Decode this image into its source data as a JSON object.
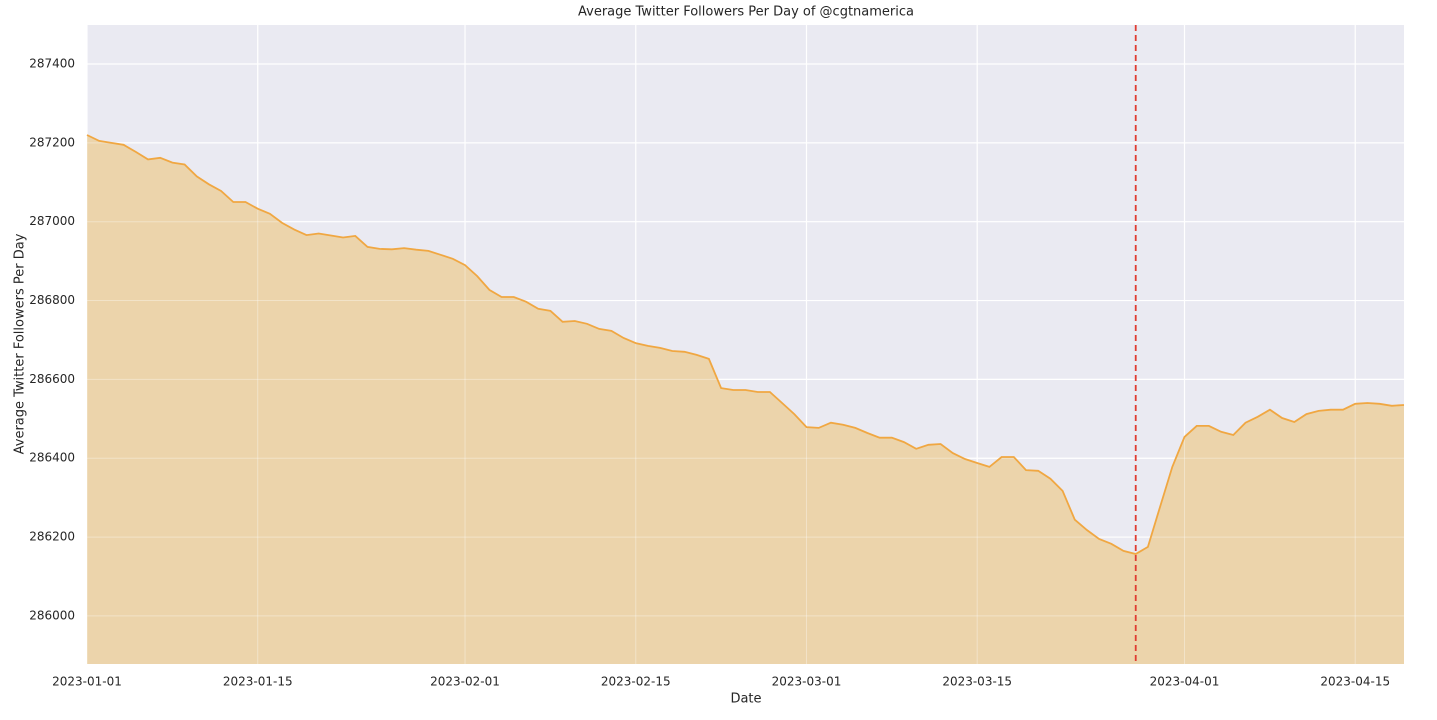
{
  "chart_data": {
    "type": "area",
    "title": "Average Twitter Followers Per Day of @cgtnamerica",
    "x_label": "Date",
    "y_label": "Average Twitter Followers Per Day",
    "x": [
      "2023-01-01",
      "2023-01-02",
      "2023-01-03",
      "2023-01-04",
      "2023-01-05",
      "2023-01-06",
      "2023-01-07",
      "2023-01-08",
      "2023-01-09",
      "2023-01-10",
      "2023-01-11",
      "2023-01-12",
      "2023-01-13",
      "2023-01-14",
      "2023-01-15",
      "2023-01-16",
      "2023-01-17",
      "2023-01-18",
      "2023-01-19",
      "2023-01-20",
      "2023-01-21",
      "2023-01-22",
      "2023-01-23",
      "2023-01-24",
      "2023-01-25",
      "2023-01-26",
      "2023-01-27",
      "2023-01-28",
      "2023-01-29",
      "2023-01-30",
      "2023-01-31",
      "2023-02-01",
      "2023-02-02",
      "2023-02-03",
      "2023-02-04",
      "2023-02-05",
      "2023-02-06",
      "2023-02-07",
      "2023-02-08",
      "2023-02-09",
      "2023-02-10",
      "2023-02-11",
      "2023-02-12",
      "2023-02-13",
      "2023-02-14",
      "2023-02-15",
      "2023-02-16",
      "2023-02-17",
      "2023-02-18",
      "2023-02-19",
      "2023-02-20",
      "2023-02-21",
      "2023-02-22",
      "2023-02-23",
      "2023-02-24",
      "2023-02-25",
      "2023-02-26",
      "2023-02-27",
      "2023-02-28",
      "2023-03-01",
      "2023-03-02",
      "2023-03-03",
      "2023-03-04",
      "2023-03-05",
      "2023-03-06",
      "2023-03-07",
      "2023-03-08",
      "2023-03-09",
      "2023-03-10",
      "2023-03-11",
      "2023-03-12",
      "2023-03-13",
      "2023-03-14",
      "2023-03-15",
      "2023-03-16",
      "2023-03-17",
      "2023-03-18",
      "2023-03-19",
      "2023-03-20",
      "2023-03-21",
      "2023-03-22",
      "2023-03-23",
      "2023-03-24",
      "2023-03-25",
      "2023-03-26",
      "2023-03-27",
      "2023-03-28",
      "2023-03-29",
      "2023-03-30",
      "2023-03-31",
      "2023-04-01",
      "2023-04-02",
      "2023-04-03",
      "2023-04-04",
      "2023-04-05",
      "2023-04-06",
      "2023-04-07",
      "2023-04-08",
      "2023-04-09",
      "2023-04-10",
      "2023-04-11",
      "2023-04-12",
      "2023-04-13",
      "2023-04-14",
      "2023-04-15",
      "2023-04-16",
      "2023-04-17",
      "2023-04-18",
      "2023-04-19"
    ],
    "series": [
      {
        "name": "Average Twitter Followers Per Day",
        "color": "#f0a742",
        "fill": "#ecd4ab",
        "values": [
          287220,
          287205,
          287200,
          287195,
          287177,
          287158,
          287162,
          287150,
          287145,
          287115,
          287095,
          287078,
          287050,
          287050,
          287033,
          287020,
          286997,
          286980,
          286966,
          286970,
          286965,
          286960,
          286964,
          286936,
          286931,
          286930,
          286933,
          286929,
          286926,
          286916,
          286906,
          286890,
          286862,
          286827,
          286809,
          286809,
          286797,
          286779,
          286774,
          286746,
          286748,
          286741,
          286728,
          286723,
          286705,
          286692,
          286685,
          286680,
          286672,
          286670,
          286662,
          286652,
          286578,
          286573,
          286573,
          286568,
          286568,
          286540,
          286512,
          286479,
          286477,
          286490,
          286485,
          286477,
          286464,
          286452,
          286452,
          286441,
          286424,
          286434,
          286436,
          286413,
          286398,
          286388,
          286378,
          286403,
          286403,
          286370,
          286368,
          286348,
          286317,
          286244,
          286218,
          286195,
          286183,
          286165,
          286157,
          286175,
          286277,
          286378,
          286454,
          286482,
          286482,
          286467,
          286459,
          286490,
          286505,
          286523,
          286502,
          286492,
          286512,
          286520,
          286523,
          286523,
          286538,
          286540,
          286538,
          286533,
          286535
        ]
      }
    ],
    "xlim": [
      "2023-01-01",
      "2023-04-19"
    ],
    "xticks": [
      "2023-01-01",
      "2023-01-15",
      "2023-02-01",
      "2023-02-15",
      "2023-03-01",
      "2023-03-15",
      "2023-04-01",
      "2023-04-15"
    ],
    "ylim": [
      285878,
      287499
    ],
    "yticks": [
      286000,
      286200,
      286400,
      286600,
      286800,
      287000,
      287200,
      287400
    ],
    "grid": true,
    "vline": {
      "x": "2023-03-28",
      "color": "#e03c31"
    }
  }
}
